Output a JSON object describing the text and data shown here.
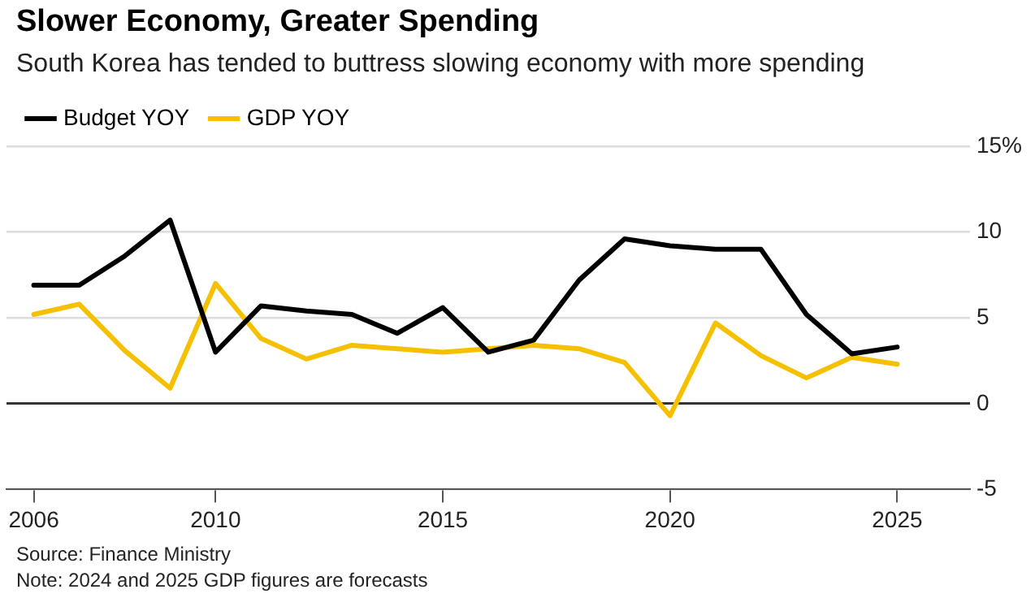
{
  "chart_data": {
    "type": "line",
    "title": "Slower Economy, Greater Spending",
    "subtitle": "South Korea has tended to buttress slowing economy with more spending",
    "x": [
      2006,
      2007,
      2008,
      2009,
      2010,
      2011,
      2012,
      2013,
      2014,
      2015,
      2016,
      2017,
      2018,
      2019,
      2020,
      2021,
      2022,
      2023,
      2024,
      2025
    ],
    "series": [
      {
        "name": "Budget YOY",
        "color": "#000000",
        "values": [
          6.9,
          6.9,
          8.6,
          10.7,
          3.0,
          5.7,
          5.4,
          5.2,
          4.1,
          5.6,
          3.0,
          3.7,
          7.2,
          9.6,
          9.2,
          9.0,
          9.0,
          5.2,
          2.9,
          3.3
        ]
      },
      {
        "name": "GDP YOY",
        "color": "#f5c000",
        "values": [
          5.2,
          5.8,
          3.1,
          0.9,
          7.0,
          3.8,
          2.6,
          3.4,
          3.2,
          3.0,
          3.2,
          3.4,
          3.2,
          2.4,
          -0.7,
          4.7,
          2.8,
          1.5,
          2.7,
          2.3
        ]
      }
    ],
    "xlim": [
      2005.4,
      2026.6
    ],
    "xticks": [
      2006,
      2010,
      2015,
      2020,
      2025
    ],
    "ylim": [
      -5,
      15
    ],
    "yticks": [
      -5,
      0,
      5,
      10,
      {
        "value": 15,
        "label": "15%"
      }
    ],
    "grid": "y",
    "legend": "top left",
    "marker": "none",
    "line_style": "solid",
    "annotations": [
      "Source: Finance Ministry",
      "Note: 2024 and 2025 GDP figures are forecasts"
    ]
  }
}
